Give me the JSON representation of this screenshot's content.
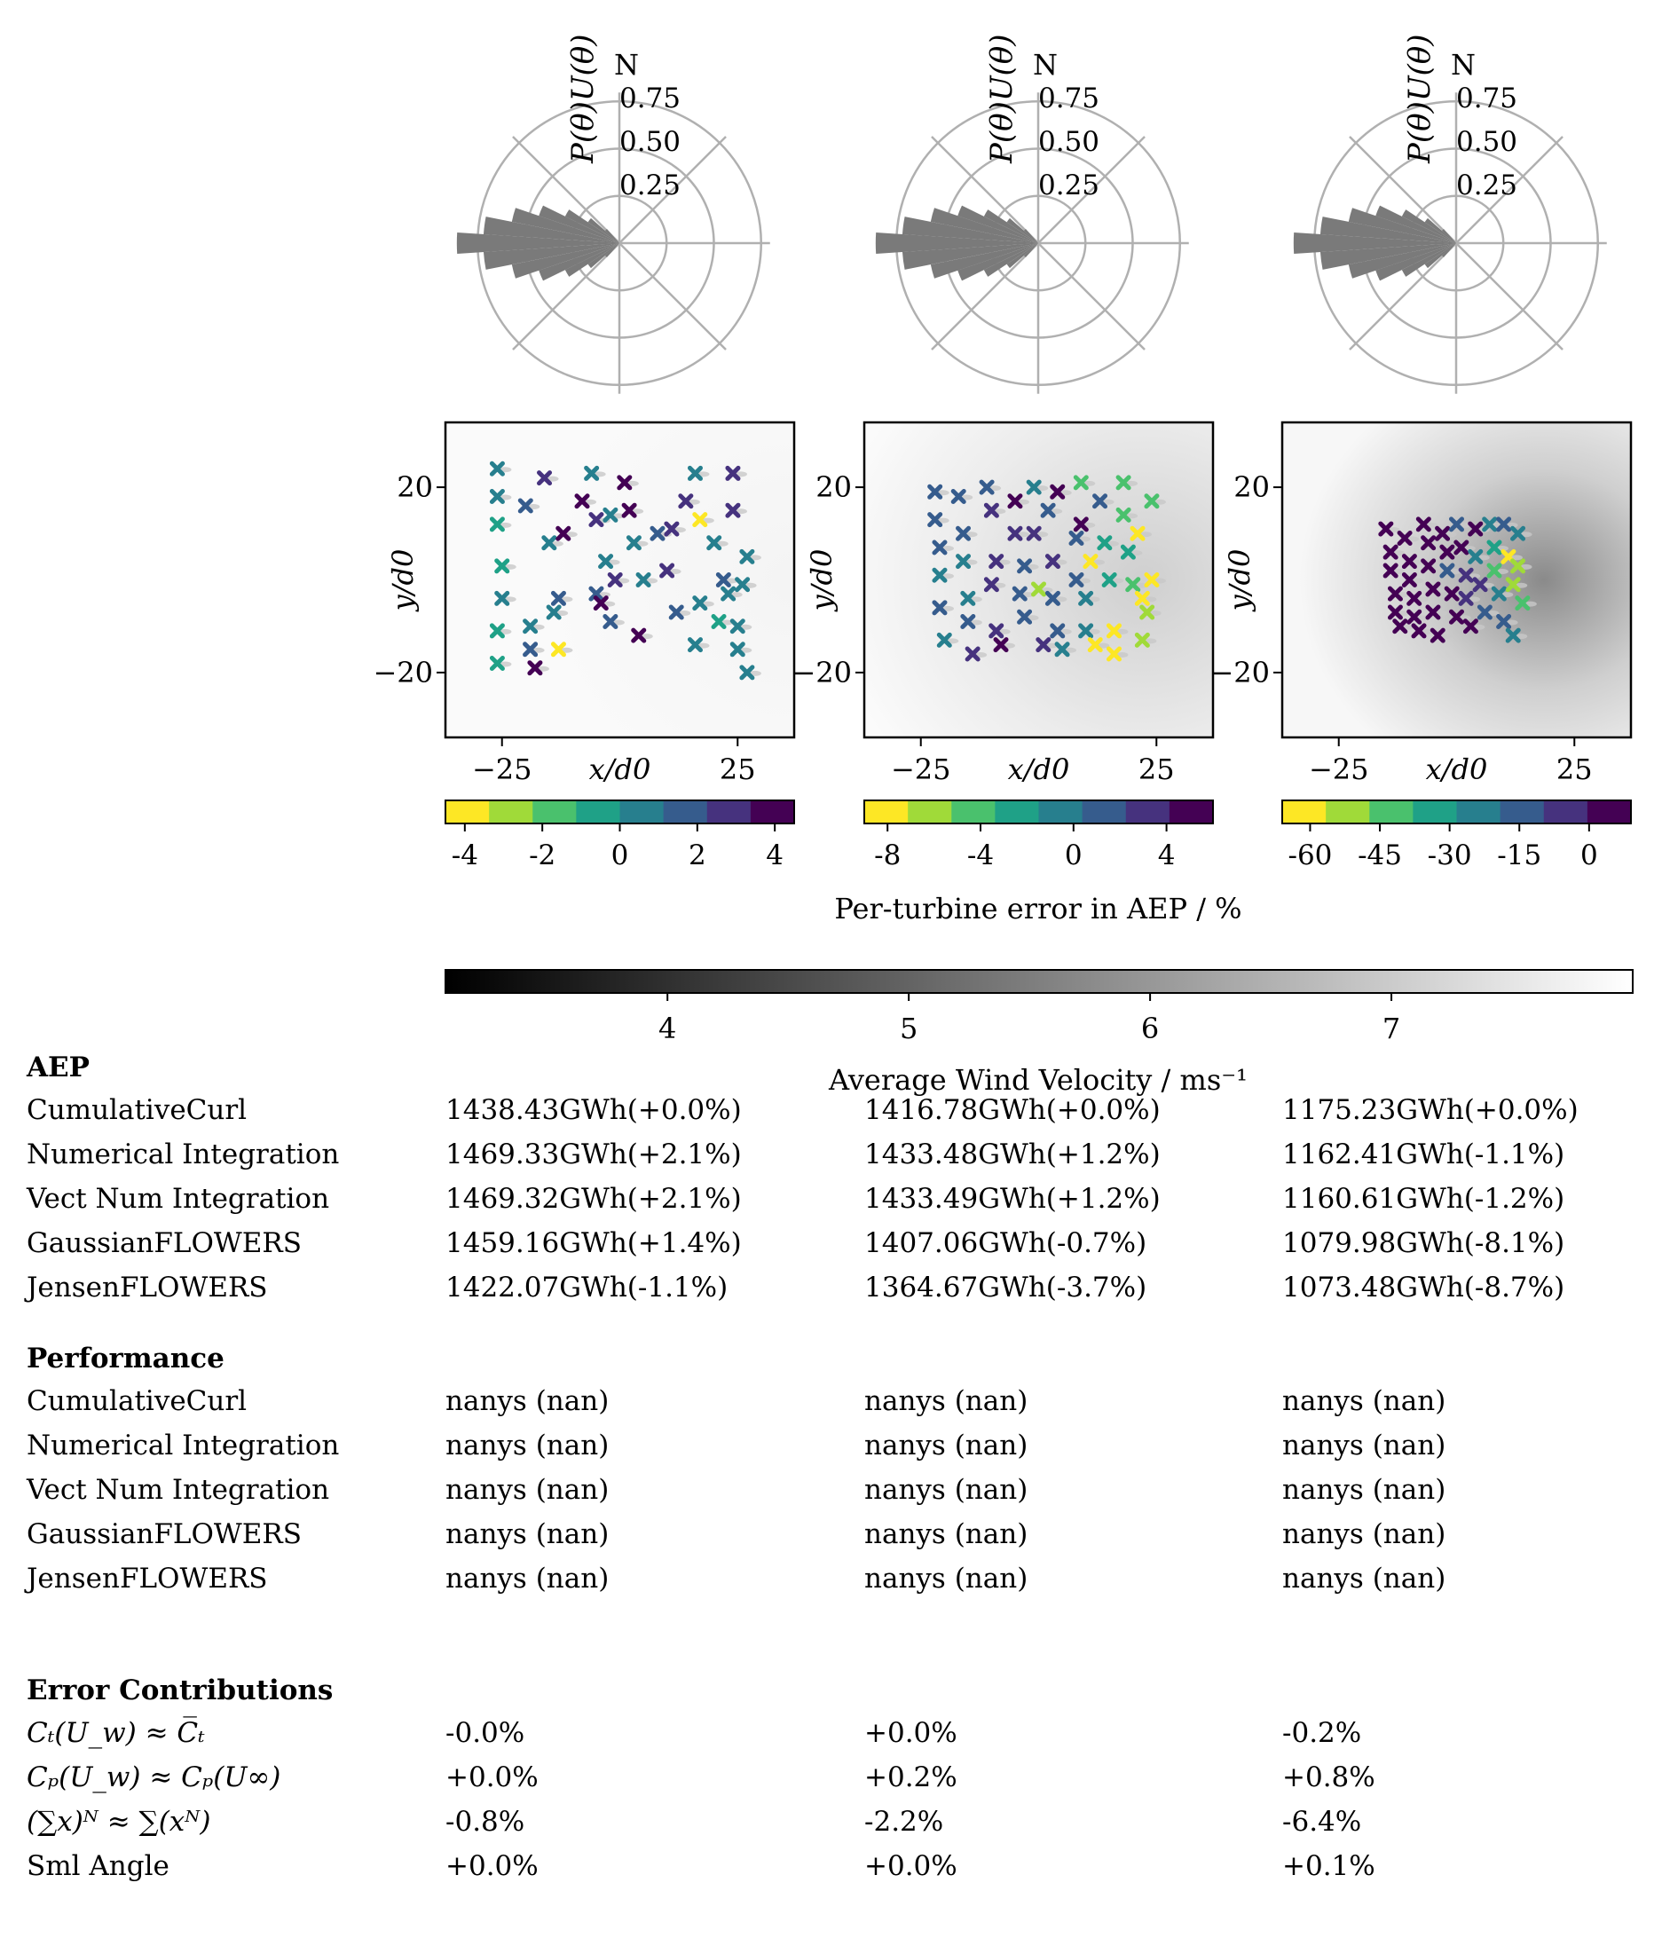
{
  "windrose": {
    "north_label": "N",
    "radial_label": "P(θ)U(θ)",
    "radial_ticks": [
      "0.25",
      "0.50",
      "0.75"
    ],
    "bars": [
      {
        "deg": 270,
        "v": 0.86
      },
      {
        "deg": 262.5,
        "v": 0.72
      },
      {
        "deg": 277.5,
        "v": 0.72
      },
      {
        "deg": 255,
        "v": 0.58
      },
      {
        "deg": 285,
        "v": 0.58
      },
      {
        "deg": 247.5,
        "v": 0.45
      },
      {
        "deg": 292.5,
        "v": 0.45
      },
      {
        "deg": 240,
        "v": 0.32
      },
      {
        "deg": 300,
        "v": 0.32
      },
      {
        "deg": 232.5,
        "v": 0.2
      },
      {
        "deg": 307.5,
        "v": 0.2
      },
      {
        "deg": 225,
        "v": 0.1
      },
      {
        "deg": 315,
        "v": 0.1
      }
    ]
  },
  "chart_data": [
    {
      "type": "scatter",
      "xlabel": "x/d0",
      "ylabel": "y/d0",
      "xticks": [
        "−25",
        "25"
      ],
      "yticks": [
        "20",
        "−20"
      ],
      "xlim": [
        -37,
        37
      ],
      "ylim": [
        -34,
        34
      ],
      "colorbar": {
        "ticks": [
          "-4",
          "-2",
          "0",
          "2",
          "4"
        ],
        "range": [
          -4.5,
          4.5
        ]
      },
      "points": [
        [
          -26,
          24,
          0
        ],
        [
          -26,
          18,
          0
        ],
        [
          -26,
          12,
          -0.5
        ],
        [
          -25,
          3,
          -0.5
        ],
        [
          -25,
          -4,
          0
        ],
        [
          -26,
          -11,
          -0.5
        ],
        [
          -26,
          -18,
          -0.5
        ],
        [
          -20,
          16,
          1.5
        ],
        [
          -19,
          -10,
          0.5
        ],
        [
          -19,
          -15,
          1.5
        ],
        [
          -18,
          -19,
          3.5
        ],
        [
          -16,
          22,
          2.5
        ],
        [
          -15,
          8,
          0.5
        ],
        [
          -14,
          -7,
          0.5
        ],
        [
          -13,
          -4,
          1.5
        ],
        [
          -13,
          -15,
          -4.5
        ],
        [
          -12,
          10,
          4
        ],
        [
          -8,
          17,
          3.5
        ],
        [
          -6,
          23,
          0
        ],
        [
          -5,
          13,
          2.5
        ],
        [
          -5,
          -3,
          2
        ],
        [
          -4,
          -5,
          4.5
        ],
        [
          -3,
          4,
          1
        ],
        [
          -2,
          -9,
          1.5
        ],
        [
          -2,
          14,
          1
        ],
        [
          -1,
          0,
          2.5
        ],
        [
          1,
          21,
          4.5
        ],
        [
          2,
          15,
          4.5
        ],
        [
          3,
          8,
          1
        ],
        [
          4,
          -12,
          4.5
        ],
        [
          5,
          0,
          0.5
        ],
        [
          8,
          10,
          1.5
        ],
        [
          10,
          2,
          3
        ],
        [
          11,
          11,
          3
        ],
        [
          12,
          -7,
          1.5
        ],
        [
          14,
          17,
          2.5
        ],
        [
          16,
          23,
          0
        ],
        [
          16,
          -14,
          1
        ],
        [
          17,
          13,
          -4.5
        ],
        [
          17,
          -5,
          0
        ],
        [
          20,
          8,
          0.5
        ],
        [
          21,
          -9,
          -0.5
        ],
        [
          22,
          0,
          1.5
        ],
        [
          23,
          -3,
          0.5
        ],
        [
          24,
          23,
          3
        ],
        [
          24,
          15,
          3
        ],
        [
          25,
          -10,
          0
        ],
        [
          25,
          -15,
          1
        ],
        [
          26,
          -1,
          0
        ],
        [
          27,
          5,
          0
        ],
        [
          27,
          -20,
          0
        ]
      ]
    },
    {
      "type": "scatter",
      "xlabel": "x/d0",
      "ylabel": "y/d0",
      "xticks": [
        "−25",
        "25"
      ],
      "yticks": [
        "20",
        "−20"
      ],
      "xlim": [
        -37,
        37
      ],
      "ylim": [
        -34,
        34
      ],
      "colorbar": {
        "ticks": [
          "-8",
          "-4",
          "0",
          "4"
        ],
        "range": [
          -9,
          6
        ]
      },
      "points": [
        [
          -22,
          19,
          1.5
        ],
        [
          -22,
          13,
          0.5
        ],
        [
          -21,
          7,
          0.5
        ],
        [
          -21,
          1,
          0
        ],
        [
          -21,
          -6,
          0.5
        ],
        [
          -20,
          -13,
          0
        ],
        [
          -17,
          18,
          2
        ],
        [
          -16,
          10,
          0.5
        ],
        [
          -16,
          4,
          -1
        ],
        [
          -15,
          -4,
          0
        ],
        [
          -15,
          -9,
          1
        ],
        [
          -14,
          -16,
          3
        ],
        [
          -11,
          20,
          2
        ],
        [
          -10,
          15,
          3.5
        ],
        [
          -10,
          -1,
          2.5
        ],
        [
          -9,
          4,
          3
        ],
        [
          -9,
          -11,
          3.5
        ],
        [
          -8,
          -14,
          5
        ],
        [
          -5,
          17,
          5
        ],
        [
          -5,
          10,
          3
        ],
        [
          -4,
          -3,
          1
        ],
        [
          -3,
          3,
          2
        ],
        [
          -3,
          -8,
          0.5
        ],
        [
          -1,
          20,
          -1
        ],
        [
          -1,
          10,
          3
        ],
        [
          0,
          -2,
          -7
        ],
        [
          1,
          -14,
          3
        ],
        [
          2,
          15,
          2
        ],
        [
          3,
          4,
          3
        ],
        [
          3,
          -4,
          2
        ],
        [
          4,
          19,
          5
        ],
        [
          4,
          -11,
          1
        ],
        [
          5,
          -15,
          0
        ],
        [
          8,
          9,
          1
        ],
        [
          8,
          0,
          2
        ],
        [
          9,
          21,
          -4
        ],
        [
          9,
          12,
          5
        ],
        [
          10,
          -4,
          -1
        ],
        [
          10,
          -11,
          0
        ],
        [
          11,
          4,
          -9
        ],
        [
          12,
          -14,
          -8
        ],
        [
          13,
          17,
          2
        ],
        [
          14,
          8,
          -2
        ],
        [
          15,
          0,
          -3
        ],
        [
          16,
          -11,
          -9
        ],
        [
          16,
          -16,
          -9
        ],
        [
          18,
          21,
          -5
        ],
        [
          18,
          14,
          -4
        ],
        [
          19,
          6,
          -2
        ],
        [
          20,
          -1,
          -5
        ],
        [
          21,
          10,
          -8
        ],
        [
          22,
          -4,
          -8
        ],
        [
          23,
          -7,
          -7
        ],
        [
          24,
          17,
          -5
        ],
        [
          24,
          0,
          -8
        ],
        [
          22,
          -13,
          -7
        ]
      ]
    },
    {
      "type": "scatter",
      "xlabel": "x/d0",
      "ylabel": "y/d0",
      "xticks": [
        "−25",
        "25"
      ],
      "yticks": [
        "20",
        "−20"
      ],
      "xlim": [
        -37,
        37
      ],
      "ylim": [
        -34,
        34
      ],
      "colorbar": {
        "ticks": [
          "-60",
          "-45",
          "-30",
          "-15",
          "0"
        ],
        "range": [
          -66,
          9
        ]
      },
      "points": [
        [
          -15,
          11,
          5
        ],
        [
          -14,
          6,
          4
        ],
        [
          -14,
          2,
          5
        ],
        [
          -13,
          -3,
          5
        ],
        [
          -13,
          -7,
          4
        ],
        [
          -12,
          -10,
          5
        ],
        [
          -11,
          9,
          4
        ],
        [
          -10,
          4,
          3
        ],
        [
          -10,
          0,
          5
        ],
        [
          -9,
          -4,
          3
        ],
        [
          -9,
          -8,
          5
        ],
        [
          -8,
          -11,
          3
        ],
        [
          -7,
          12,
          3
        ],
        [
          -6,
          8,
          4
        ],
        [
          -6,
          3,
          3
        ],
        [
          -5,
          -2,
          5
        ],
        [
          -5,
          -7,
          2
        ],
        [
          -4,
          -12,
          4
        ],
        [
          -3,
          10,
          1
        ],
        [
          -2,
          6,
          2
        ],
        [
          -2,
          2,
          -15
        ],
        [
          -1,
          -3,
          4
        ],
        [
          0,
          -8,
          3
        ],
        [
          0,
          12,
          -10
        ],
        [
          1,
          7,
          1
        ],
        [
          2,
          1,
          -5
        ],
        [
          2,
          -4,
          -5
        ],
        [
          3,
          -10,
          2
        ],
        [
          4,
          11,
          3
        ],
        [
          4,
          5,
          -20
        ],
        [
          5,
          -1,
          -5
        ],
        [
          6,
          -7,
          -10
        ],
        [
          7,
          12,
          -20
        ],
        [
          8,
          7,
          -30
        ],
        [
          8,
          2,
          -45
        ],
        [
          9,
          -3,
          -20
        ],
        [
          10,
          -9,
          -15
        ],
        [
          10,
          12,
          -10
        ],
        [
          11,
          5,
          -60
        ],
        [
          12,
          -1,
          -50
        ],
        [
          12,
          -12,
          -20
        ],
        [
          13,
          10,
          -25
        ],
        [
          13,
          3,
          -55
        ],
        [
          14,
          -5,
          -45
        ]
      ]
    }
  ],
  "colorbar_label": "Per-turbine error in AEP / %",
  "velocity_colorbar": {
    "label": "Average Wind Velocity / ms⁻¹",
    "ticks": [
      "4",
      "5",
      "6",
      "7"
    ]
  },
  "tables": {
    "aep": {
      "title": "AEP",
      "rows": [
        {
          "label": "CumulativeCurl",
          "values": [
            "1438.43GWh(+0.0%)",
            "1416.78GWh(+0.0%)",
            "1175.23GWh(+0.0%)"
          ]
        },
        {
          "label": "Numerical Integration",
          "values": [
            "1469.33GWh(+2.1%)",
            "1433.48GWh(+1.2%)",
            "1162.41GWh(-1.1%)"
          ]
        },
        {
          "label": "Vect Num Integration",
          "values": [
            "1469.32GWh(+2.1%)",
            "1433.49GWh(+1.2%)",
            "1160.61GWh(-1.2%)"
          ]
        },
        {
          "label": "GaussianFLOWERS",
          "values": [
            "1459.16GWh(+1.4%)",
            "1407.06GWh(-0.7%)",
            "1079.98GWh(-8.1%)"
          ]
        },
        {
          "label": "JensenFLOWERS",
          "values": [
            "1422.07GWh(-1.1%)",
            "1364.67GWh(-3.7%)",
            "1073.48GWh(-8.7%)"
          ]
        }
      ]
    },
    "performance": {
      "title": "Performance",
      "rows": [
        {
          "label": "CumulativeCurl",
          "values": [
            "nanys (nan)",
            "nanys (nan)",
            "nanys (nan)"
          ]
        },
        {
          "label": "Numerical Integration",
          "values": [
            "nanys (nan)",
            "nanys (nan)",
            "nanys (nan)"
          ]
        },
        {
          "label": "Vect Num Integration",
          "values": [
            "nanys (nan)",
            "nanys (nan)",
            "nanys (nan)"
          ]
        },
        {
          "label": "GaussianFLOWERS",
          "values": [
            "nanys (nan)",
            "nanys (nan)",
            "nanys (nan)"
          ]
        },
        {
          "label": "JensenFLOWERS",
          "values": [
            "nanys (nan)",
            "nanys (nan)",
            "nanys (nan)"
          ]
        }
      ]
    },
    "errors": {
      "title": "Error Contributions",
      "rows": [
        {
          "label": "Cₜ(U_w) ≈ C̅ₜ",
          "values": [
            "-0.0%",
            "+0.0%",
            "-0.2%"
          ]
        },
        {
          "label": "Cₚ(U_w) ≈ Cₚ(U∞)",
          "values": [
            "+0.0%",
            "+0.2%",
            "+0.8%"
          ]
        },
        {
          "label": "(∑x)ᴺ ≈ ∑(xᴺ)",
          "values": [
            "-0.8%",
            "-2.2%",
            "-6.4%"
          ]
        },
        {
          "label": "Sml Angle",
          "values": [
            "+0.0%",
            "+0.0%",
            "+0.1%"
          ]
        }
      ]
    }
  }
}
